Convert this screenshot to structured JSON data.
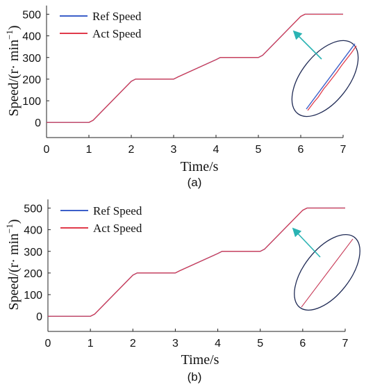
{
  "chart_data": [
    {
      "type": "line",
      "panel_label": "(a)",
      "xlabel": "Time/s",
      "ylabel": "Speed/(r· min",
      "ylabel_superscript": "−1",
      "ylabel_close": ")",
      "xlim": [
        0,
        7
      ],
      "ylim": [
        -70,
        540
      ],
      "xticks": [
        "0",
        "1",
        "2",
        "3",
        "4",
        "5",
        "6",
        "7"
      ],
      "yticks": [
        "0",
        "100",
        "200",
        "300",
        "400",
        "500"
      ],
      "grid": false,
      "legend_position": "top-left",
      "series": [
        {
          "name": "Ref Speed",
          "color": "#3b5fc9",
          "x": [
            0,
            1,
            1.1,
            2.0,
            2.1,
            3.0,
            3.1,
            4.0,
            4.1,
            5.0,
            5.1,
            6.0,
            6.1,
            7.0
          ],
          "y": [
            0,
            0,
            10,
            190,
            200,
            200,
            210,
            290,
            300,
            300,
            310,
            490,
            500,
            500
          ]
        },
        {
          "name": "Act Speed",
          "color": "#e03a4a",
          "x": [
            0,
            1,
            1.1,
            2.0,
            2.1,
            3.0,
            3.1,
            4.0,
            4.1,
            5.0,
            5.1,
            6.0,
            6.1,
            7.0
          ],
          "y": [
            0,
            0,
            10,
            190,
            200,
            200,
            210,
            290,
            300,
            300,
            310,
            490,
            500,
            500
          ]
        }
      ],
      "zoom_inset": {
        "shape": "ellipse",
        "arrow_color": "#2ab3b3",
        "ellipse_color": "#1f2a55",
        "detail": "ref and act lines diverge slightly with noise"
      }
    },
    {
      "type": "line",
      "panel_label": "(b)",
      "xlabel": "Time/s",
      "ylabel": "Speed/(r· min",
      "ylabel_superscript": "−1",
      "ylabel_close": ")",
      "xlim": [
        0,
        7
      ],
      "ylim": [
        -70,
        540
      ],
      "xticks": [
        "0",
        "1",
        "2",
        "3",
        "4",
        "5",
        "6",
        "7"
      ],
      "yticks": [
        "0",
        "100",
        "200",
        "300",
        "400",
        "500"
      ],
      "grid": false,
      "legend_position": "top-left",
      "series": [
        {
          "name": "Ref Speed",
          "color": "#3b5fc9",
          "x": [
            0,
            1,
            1.1,
            2.0,
            2.1,
            3.0,
            3.1,
            4.0,
            4.1,
            5.0,
            5.1,
            6.0,
            6.1,
            7.0
          ],
          "y": [
            0,
            0,
            10,
            190,
            200,
            200,
            210,
            290,
            300,
            300,
            310,
            490,
            500,
            500
          ]
        },
        {
          "name": "Act Speed",
          "color": "#e03a4a",
          "x": [
            0,
            1,
            1.1,
            2.0,
            2.1,
            3.0,
            3.1,
            4.0,
            4.1,
            5.0,
            5.1,
            6.0,
            6.1,
            7.0
          ],
          "y": [
            0,
            0,
            10,
            190,
            200,
            200,
            210,
            290,
            300,
            300,
            310,
            490,
            500,
            500
          ]
        }
      ],
      "zoom_inset": {
        "shape": "ellipse",
        "arrow_color": "#2ab3b3",
        "ellipse_color": "#1f2a55",
        "detail": "ref and act lines overlap"
      }
    }
  ]
}
